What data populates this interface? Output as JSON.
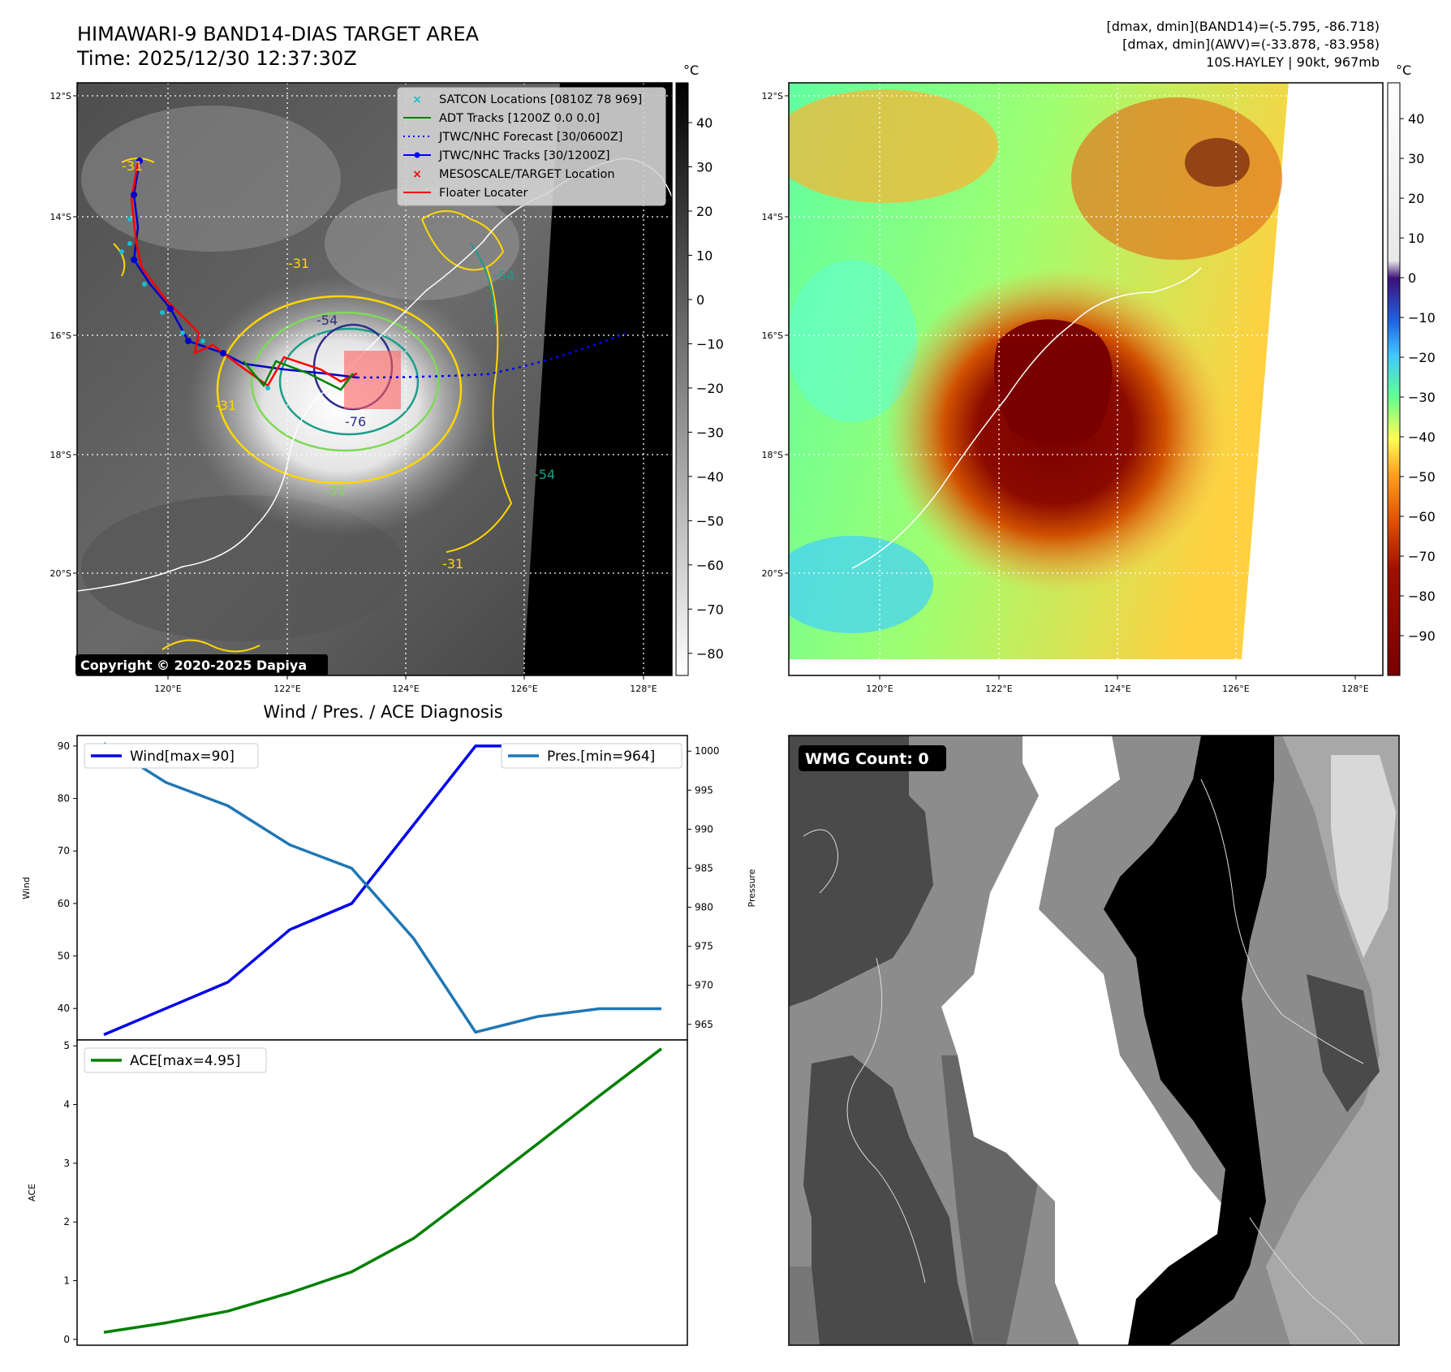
{
  "header": {
    "title_line1": "HIMAWARI-9 BAND14-DIAS TARGET AREA",
    "title_line2": "Time: 2025/12/30 12:37:30Z",
    "info_line1": "[dmax, dmin](BAND14)=(-5.795, -86.718)",
    "info_line2": "[dmax, dmin](AWV)=(-33.878, -83.958)",
    "info_line3": "10S.HAYLEY | 90kt, 967mb"
  },
  "map": {
    "lat_labels": [
      "12°S",
      "14°S",
      "16°S",
      "18°S",
      "20°S"
    ],
    "lon_labels": [
      "120°E",
      "122°E",
      "124°E",
      "126°E",
      "128°E"
    ],
    "copyright": "Copyright © 2020-2025 Dapiya",
    "contour_labels": [
      "-31",
      "-31",
      "-54",
      "-31",
      "-54",
      "-76",
      "-31",
      "-31",
      "-54"
    ],
    "legend": [
      {
        "label": "SATCON Locations [0810Z 78 969]",
        "color": "#17becf"
      },
      {
        "label": "ADT Tracks [1200Z 0.0 0.0]",
        "color": "#008000"
      },
      {
        "label": "JTWC/NHC Forecast [30/0600Z]",
        "color": "#0000ff"
      },
      {
        "label": "JTWC/NHC Tracks [30/1200Z]",
        "color": "#0000ff"
      },
      {
        "label": "MESOSCALE/TARGET Location",
        "color": "#ff0000"
      },
      {
        "label": "Floater Locater",
        "color": "#ff0000"
      }
    ]
  },
  "colorbar_left": {
    "unit": "°C",
    "ticks": [
      40,
      30,
      20,
      10,
      0,
      -10,
      -20,
      -30,
      -40,
      -50,
      -60,
      -70,
      -80
    ],
    "range": [
      -85,
      49
    ]
  },
  "colorbar_right": {
    "unit": "°C",
    "ticks": [
      40,
      30,
      20,
      10,
      0,
      -10,
      -20,
      -30,
      -40,
      -50,
      -60,
      -70,
      -80,
      -90
    ],
    "range": [
      -100,
      49
    ]
  },
  "wmg": {
    "label": "WMG Count: 0"
  },
  "chart_data": [
    {
      "type": "line",
      "title": "Wind / Pres. / ACE Diagnosis",
      "ylabel": "Wind",
      "ylim": [
        34,
        92
      ],
      "yticks": [
        40,
        50,
        60,
        70,
        80,
        90
      ],
      "series": [
        {
          "name": "Wind[max=90]",
          "color": "#0000ee",
          "x": [
            0,
            1,
            2,
            3,
            4,
            5,
            6,
            7,
            8,
            9
          ],
          "values": [
            35,
            40,
            45,
            55,
            60,
            75,
            90,
            90,
            90,
            90
          ]
        }
      ]
    },
    {
      "type": "line",
      "ylabel": "Pressure",
      "ylim": [
        963,
        1002
      ],
      "yticks": [
        965,
        970,
        975,
        980,
        985,
        990,
        995,
        1000
      ],
      "series": [
        {
          "name": "Pres.[min=964]",
          "color": "#1f77b4",
          "x": [
            0,
            1,
            2,
            3,
            4,
            5,
            6,
            7,
            8,
            9
          ],
          "values": [
            1001,
            996,
            993,
            988,
            985,
            976,
            964,
            966,
            967,
            967
          ]
        }
      ]
    },
    {
      "type": "line",
      "ylabel": "ACE",
      "ylim": [
        -0.1,
        5.1
      ],
      "yticks": [
        0,
        1,
        2,
        3,
        4,
        5
      ],
      "series": [
        {
          "name": "ACE[max=4.95]",
          "color": "#008000",
          "x": [
            0,
            1,
            2,
            3,
            4,
            5,
            6,
            7,
            8,
            9
          ],
          "values": [
            0.12,
            0.28,
            0.48,
            0.79,
            1.15,
            1.72,
            2.52,
            3.33,
            4.15,
            4.95
          ]
        }
      ]
    }
  ]
}
